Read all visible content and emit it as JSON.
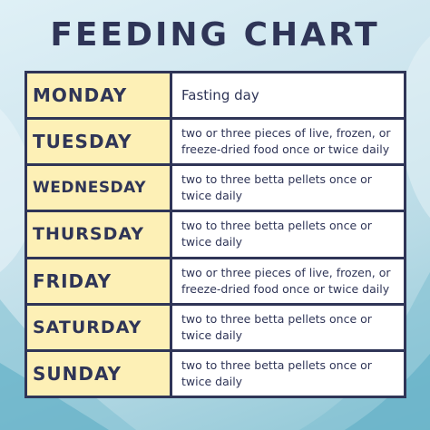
{
  "title": "FEEDING CHART",
  "schedule": [
    {
      "day": "MONDAY",
      "plan": "Fasting day"
    },
    {
      "day": "TUESDAY",
      "plan": "two or three pieces of live, frozen, or freeze-dried food once or twice daily"
    },
    {
      "day": "WEDNESDAY",
      "plan": "two to three betta pellets once or twice daily"
    },
    {
      "day": "THURSDAY",
      "plan": "two to three betta pellets once or twice daily"
    },
    {
      "day": "FRIDAY",
      "plan": "two or three pieces of live, frozen, or freeze-dried food once or twice daily"
    },
    {
      "day": "SATURDAY",
      "plan": "two to three betta pellets once or twice daily"
    },
    {
      "day": "SUNDAY",
      "plan": "two to three betta pellets once or twice daily"
    }
  ],
  "colors": {
    "text": "#2f3557",
    "day_cell": "#fdf0b6",
    "plan_cell": "#ffffff",
    "border": "#2f3557",
    "background": "#cfe6ef"
  }
}
